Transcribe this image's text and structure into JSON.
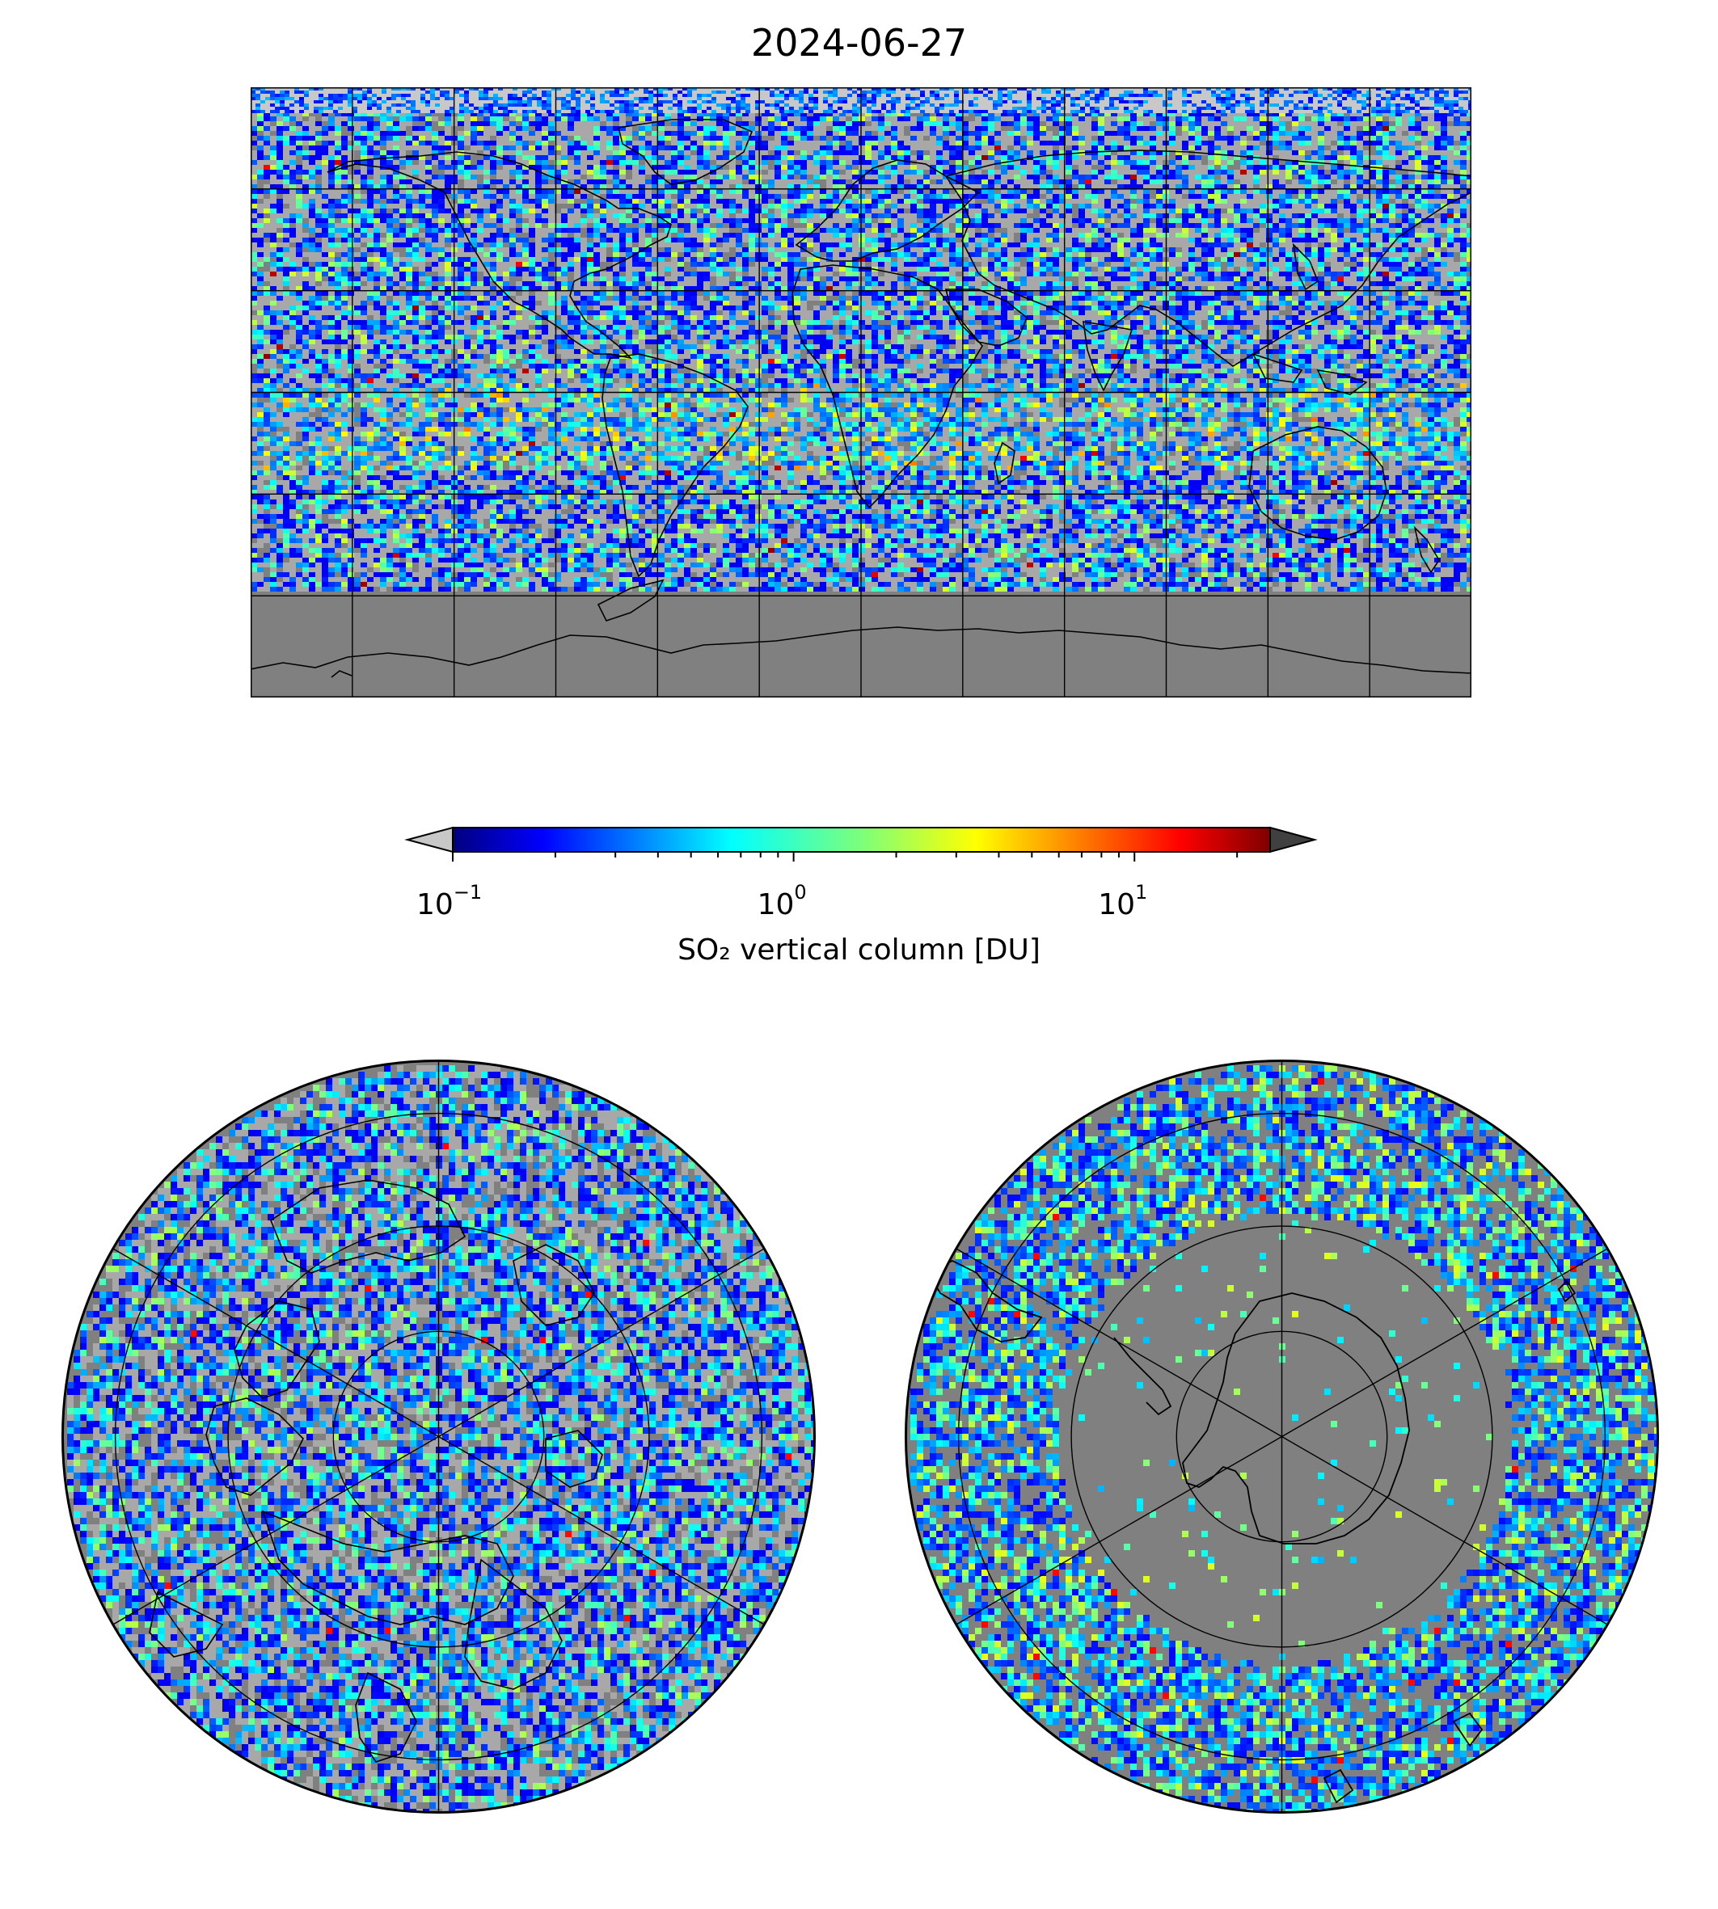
{
  "title": "2024-06-27",
  "colorbar": {
    "label": "SO₂ vertical column [DU]",
    "scale": "log",
    "range": [
      0.1,
      25
    ],
    "extend": "both",
    "under_color": "#c8c8c8",
    "over_color": "#404040",
    "colormap": "jet",
    "ticks": [
      {
        "value": 0.1,
        "base": "10",
        "exp": "−1"
      },
      {
        "value": 1,
        "base": "10",
        "exp": "0"
      },
      {
        "value": 10,
        "base": "10",
        "exp": "1"
      }
    ]
  },
  "colors": {
    "no_data": "#808080",
    "below_range": "#c0c0c0",
    "coastline": "#000000",
    "gridline": "#000000"
  },
  "maps": [
    {
      "name": "world",
      "projection": "equirectangular",
      "gridlines": true
    },
    {
      "name": "arctic",
      "projection": "north-polar-stereographic",
      "gridlines": true
    },
    {
      "name": "antarctic",
      "projection": "south-polar-stereographic",
      "gridlines": true
    }
  ]
}
